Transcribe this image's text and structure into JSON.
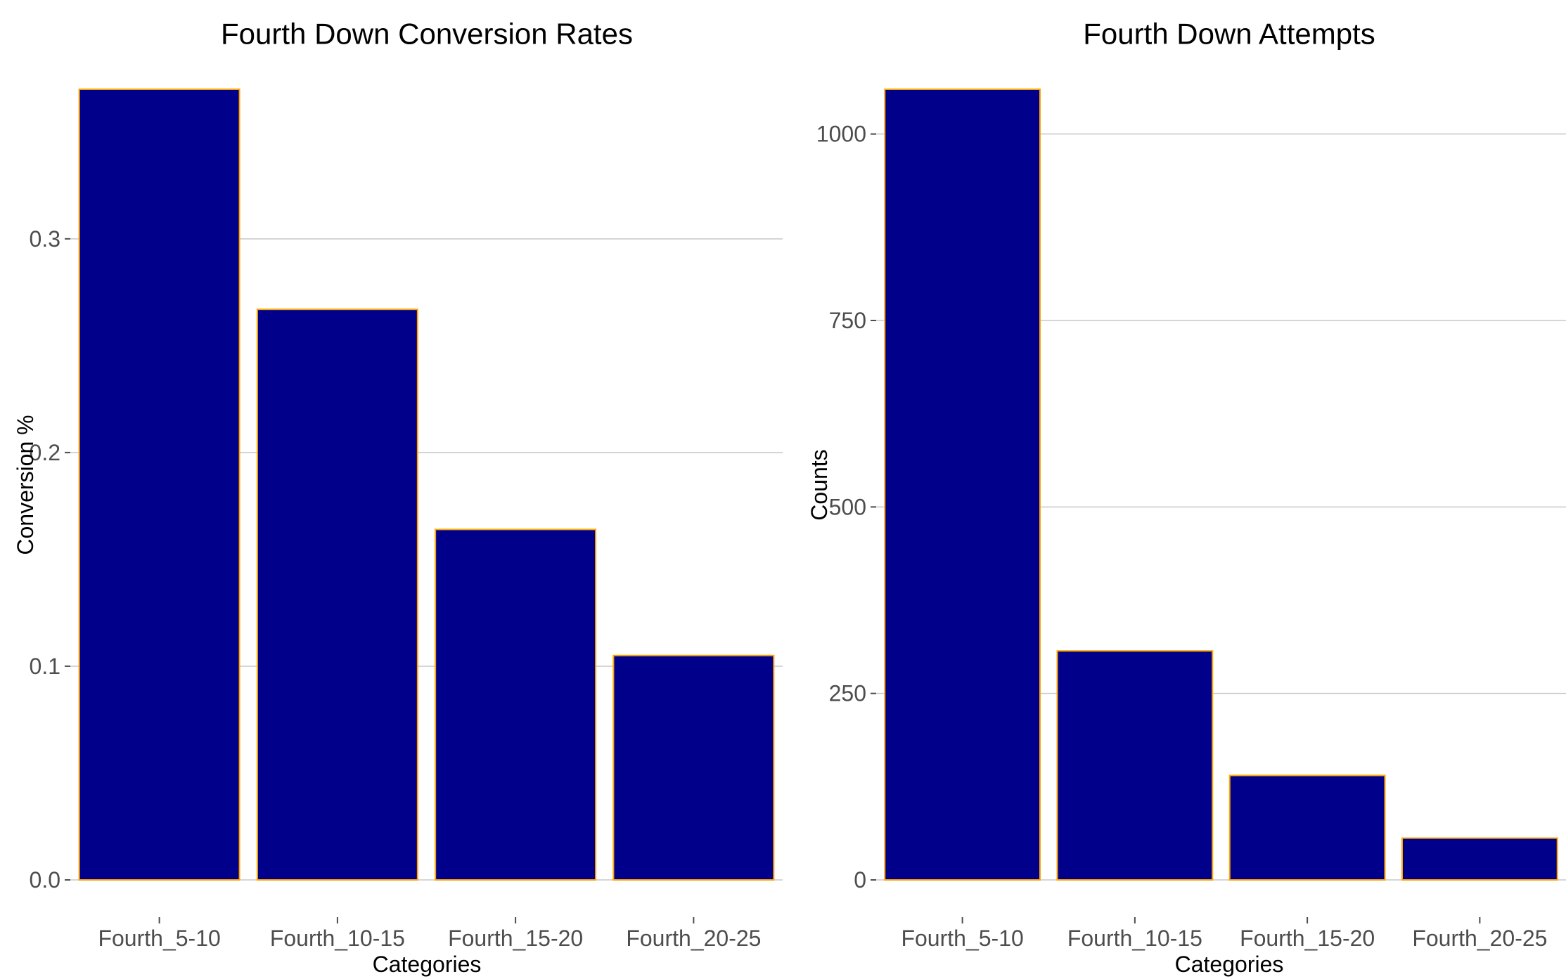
{
  "chart_data": [
    {
      "type": "bar",
      "title": "Fourth Down Conversion Rates",
      "xlabel": "Categories",
      "ylabel": "Conversion %",
      "categories": [
        "Fourth_5-10",
        "Fourth_10-15",
        "Fourth_15-20",
        "Fourth_20-25"
      ],
      "values": [
        0.37,
        0.267,
        0.164,
        0.105
      ],
      "ylim": [
        0,
        0.37
      ],
      "yticks": [
        0.0,
        0.1,
        0.2,
        0.3
      ],
      "ytick_labels": [
        "0.0",
        "0.1",
        "0.2",
        "0.3"
      ],
      "grid": "horizontal major",
      "legend": "none",
      "bar_fill": "#00008B",
      "bar_outline": "#FFA500"
    },
    {
      "type": "bar",
      "title": "Fourth Down Attempts",
      "xlabel": "Categories",
      "ylabel": "Counts",
      "categories": [
        "Fourth_5-10",
        "Fourth_10-15",
        "Fourth_15-20",
        "Fourth_20-25"
      ],
      "values": [
        1060,
        307,
        140,
        56
      ],
      "ylim": [
        0,
        1060
      ],
      "yticks": [
        0,
        250,
        500,
        750,
        1000
      ],
      "ytick_labels": [
        "0",
        "250",
        "500",
        "750",
        "1000"
      ],
      "grid": "horizontal major",
      "legend": "none",
      "bar_fill": "#00008B",
      "bar_outline": "#FFA500"
    }
  ]
}
